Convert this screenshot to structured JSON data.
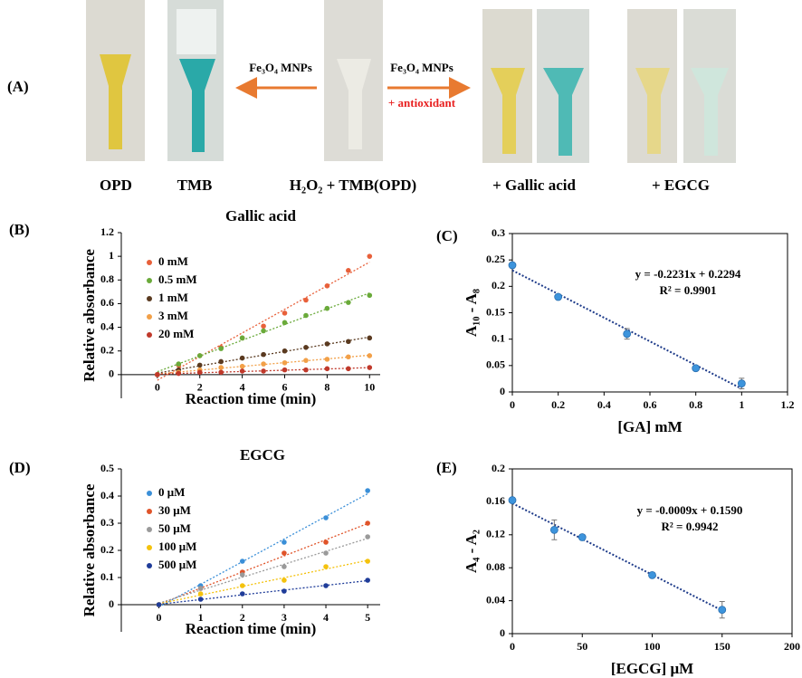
{
  "panel_a": {
    "label": "(A)",
    "arrows": [
      {
        "text": "Fe₃O₄ MNPs"
      },
      {
        "text": "Fe₃O₄ MNPs",
        "note": "+ antioxidant"
      }
    ],
    "captions": [
      "OPD",
      "TMB",
      "H₂O₂ + TMB(OPD)",
      "+ Gallic acid",
      "+ EGCG"
    ]
  },
  "chart_data": [
    {
      "type": "scatter",
      "panel_label": "(B)",
      "title": "Gallic acid",
      "xlabel": "Reaction time (min)",
      "ylabel": "Relative absorbance",
      "x": [
        0,
        1,
        2,
        3,
        4,
        5,
        6,
        7,
        8,
        9,
        10
      ],
      "series": [
        {
          "name": "0 mM",
          "color": "#e8603a",
          "values": [
            0,
            0.08,
            0.16,
            0.23,
            0.31,
            0.41,
            0.52,
            0.63,
            0.75,
            0.88,
            1.0
          ]
        },
        {
          "name": "0.5 mM",
          "color": "#6aaa3a",
          "values": [
            0,
            0.09,
            0.16,
            0.22,
            0.31,
            0.37,
            0.44,
            0.5,
            0.56,
            0.61,
            0.67
          ]
        },
        {
          "name": "1 mM",
          "color": "#5a3a20",
          "values": [
            0,
            0.04,
            0.08,
            0.11,
            0.14,
            0.17,
            0.2,
            0.23,
            0.26,
            0.28,
            0.31
          ]
        },
        {
          "name": "3 mM",
          "color": "#f2a048",
          "values": [
            0,
            0.02,
            0.04,
            0.06,
            0.07,
            0.09,
            0.1,
            0.12,
            0.13,
            0.15,
            0.16
          ]
        },
        {
          "name": "20 mM",
          "color": "#c0392b",
          "values": [
            0,
            0.01,
            0.02,
            0.02,
            0.03,
            0.03,
            0.04,
            0.04,
            0.05,
            0.05,
            0.06
          ]
        }
      ],
      "xlim": [
        -1.7,
        10.5
      ],
      "xticks": [
        0,
        2,
        4,
        6,
        8,
        10
      ],
      "ylim": [
        -0.2,
        1.2
      ],
      "yticks": [
        0,
        0.2,
        0.4,
        0.6,
        0.8,
        1,
        1.2
      ],
      "trendline": true,
      "legend": "upper left",
      "frame": false
    },
    {
      "type": "scatter",
      "panel_label": "(C)",
      "xlabel": "[GA] mM",
      "ylabel": "A₁₀ - A₈",
      "x": [
        0,
        0.2,
        0.5,
        0.8,
        1.0
      ],
      "values": [
        0.24,
        0.18,
        0.11,
        0.045,
        0.016
      ],
      "errors": [
        0.005,
        0.003,
        0.01,
        0.003,
        0.01
      ],
      "color": "#3d94dc",
      "annotations": [
        "y = -0.2231x + 0.2294",
        "R² = 0.9901"
      ],
      "xlim": [
        0,
        1.2
      ],
      "xticks": [
        0,
        0.2,
        0.4,
        0.6,
        0.8,
        1,
        1.2
      ],
      "ylim": [
        0,
        0.3
      ],
      "yticks": [
        0,
        0.05,
        0.1,
        0.15,
        0.2,
        0.25,
        0.3
      ],
      "trendline": true,
      "frame": true
    },
    {
      "type": "scatter",
      "panel_label": "(D)",
      "title": "EGCG",
      "xlabel": "Reaction time (min)",
      "ylabel": "Relative absorbance",
      "x": [
        0,
        1,
        2,
        3,
        4,
        5
      ],
      "series": [
        {
          "name": "0 μM",
          "color": "#3a8fd8",
          "values": [
            0,
            0.07,
            0.16,
            0.23,
            0.32,
            0.42
          ]
        },
        {
          "name": "30 μM",
          "color": "#e0542a",
          "values": [
            0,
            0.06,
            0.12,
            0.19,
            0.23,
            0.3
          ]
        },
        {
          "name": "50 μM",
          "color": "#9a9a9a",
          "values": [
            0,
            0.06,
            0.11,
            0.14,
            0.19,
            0.25
          ]
        },
        {
          "name": "100 μM",
          "color": "#f4c20d",
          "values": [
            0,
            0.04,
            0.07,
            0.09,
            0.14,
            0.16
          ]
        },
        {
          "name": "500 μM",
          "color": "#1f3c99",
          "values": [
            0,
            0.02,
            0.04,
            0.05,
            0.07,
            0.09
          ]
        }
      ],
      "xlim": [
        -0.9,
        5.3
      ],
      "xticks": [
        0,
        1,
        2,
        3,
        4,
        5
      ],
      "ylim": [
        -0.1,
        0.5
      ],
      "yticks": [
        0,
        0.1,
        0.2,
        0.3,
        0.4,
        0.5
      ],
      "trendline": true,
      "legend": "upper left",
      "frame": false
    },
    {
      "type": "scatter",
      "panel_label": "(E)",
      "xlabel": "[EGCG] μM",
      "ylabel": "A₄ - A₂",
      "x": [
        0,
        30,
        50,
        100,
        150
      ],
      "values": [
        0.162,
        0.126,
        0.117,
        0.071,
        0.029
      ],
      "errors": [
        0.003,
        0.012,
        0.003,
        0.002,
        0.01
      ],
      "color": "#3d94dc",
      "annotations": [
        "y = -0.0009x + 0.1590",
        "R² = 0.9942"
      ],
      "xlim": [
        0,
        200
      ],
      "xticks": [
        0,
        50,
        100,
        150,
        200
      ],
      "ylim": [
        0,
        0.2
      ],
      "yticks": [
        0,
        0.04,
        0.08,
        0.12,
        0.16,
        0.2
      ],
      "trendline": true,
      "frame": true
    }
  ]
}
